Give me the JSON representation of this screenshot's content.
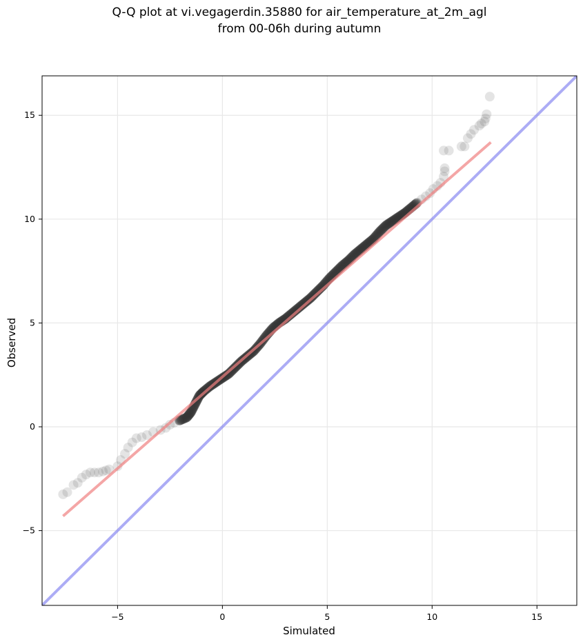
{
  "chart_data": {
    "type": "scatter",
    "title_line1": "Q-Q plot at vi.vegagerdin.35880 for air_temperature_at_2m_agl",
    "title_line2": "from 00-06h during autumn",
    "xlabel": "Simulated",
    "ylabel": "Observed",
    "xlim": [
      -8.6,
      16.9
    ],
    "ylim": [
      -8.6,
      16.9
    ],
    "xticks": [
      -5,
      0,
      5,
      10,
      15
    ],
    "yticks": [
      -5,
      0,
      5,
      10,
      15
    ],
    "xtick_labels": [
      "−5",
      "0",
      "5",
      "10",
      "15"
    ],
    "ytick_labels": [
      "−5",
      "0",
      "5",
      "10",
      "15"
    ],
    "grid": true,
    "colors": {
      "points": "#555555",
      "fit_line": "#f08080",
      "identity_line": "#8080f0",
      "grid": "#e8e8e8"
    },
    "identity_line": {
      "from": [
        -8.6,
        -8.6
      ],
      "to": [
        16.9,
        16.9
      ]
    },
    "fit_line": {
      "from": [
        -7.6,
        -4.3
      ],
      "to": [
        12.8,
        13.7
      ]
    },
    "tail_points": [
      [
        -7.6,
        -3.25
      ],
      [
        -7.4,
        -3.15
      ],
      [
        -7.1,
        -2.8
      ],
      [
        -6.9,
        -2.7
      ],
      [
        -6.7,
        -2.45
      ],
      [
        -6.5,
        -2.3
      ],
      [
        -6.3,
        -2.2
      ],
      [
        -6.1,
        -2.2
      ],
      [
        -5.9,
        -2.2
      ],
      [
        -5.7,
        -2.15
      ],
      [
        -5.55,
        -2.1
      ],
      [
        -5.4,
        -2.05
      ],
      [
        -5.0,
        -1.9
      ],
      [
        -4.85,
        -1.6
      ],
      [
        -4.65,
        -1.3
      ],
      [
        -4.5,
        -1.0
      ],
      [
        -4.3,
        -0.75
      ],
      [
        -4.1,
        -0.55
      ],
      [
        -3.85,
        -0.5
      ],
      [
        -3.6,
        -0.4
      ],
      [
        -3.3,
        -0.25
      ],
      [
        -2.95,
        -0.15
      ],
      [
        -2.7,
        -0.05
      ],
      [
        -2.5,
        0.1
      ],
      [
        -2.3,
        0.2
      ],
      [
        -2.05,
        0.3
      ],
      [
        9.3,
        10.8
      ],
      [
        9.5,
        10.95
      ],
      [
        9.7,
        11.1
      ],
      [
        9.9,
        11.25
      ],
      [
        10.05,
        11.45
      ],
      [
        10.25,
        11.6
      ],
      [
        10.4,
        11.75
      ],
      [
        10.55,
        12.05
      ],
      [
        10.6,
        12.3
      ],
      [
        10.6,
        12.45
      ],
      [
        10.55,
        13.3
      ],
      [
        10.8,
        13.3
      ],
      [
        11.4,
        13.5
      ],
      [
        11.55,
        13.5
      ],
      [
        11.7,
        13.9
      ],
      [
        11.85,
        14.1
      ],
      [
        12.0,
        14.3
      ],
      [
        12.25,
        14.5
      ],
      [
        12.35,
        14.6
      ],
      [
        12.5,
        14.7
      ],
      [
        12.55,
        14.85
      ],
      [
        12.6,
        15.05
      ],
      [
        12.75,
        15.9
      ]
    ],
    "dense_curve": [
      [
        -2.05,
        0.3
      ],
      [
        -1.7,
        0.45
      ],
      [
        -1.5,
        0.7
      ],
      [
        -1.3,
        1.1
      ],
      [
        -1.1,
        1.5
      ],
      [
        -0.9,
        1.7
      ],
      [
        -0.6,
        1.95
      ],
      [
        -0.3,
        2.15
      ],
      [
        0.0,
        2.35
      ],
      [
        0.3,
        2.55
      ],
      [
        0.6,
        2.85
      ],
      [
        0.9,
        3.15
      ],
      [
        1.2,
        3.4
      ],
      [
        1.5,
        3.65
      ],
      [
        1.8,
        4.0
      ],
      [
        2.1,
        4.4
      ],
      [
        2.4,
        4.75
      ],
      [
        2.7,
        5.0
      ],
      [
        3.0,
        5.2
      ],
      [
        3.3,
        5.45
      ],
      [
        3.6,
        5.7
      ],
      [
        3.9,
        5.95
      ],
      [
        4.2,
        6.2
      ],
      [
        4.5,
        6.5
      ],
      [
        4.8,
        6.8
      ],
      [
        5.1,
        7.15
      ],
      [
        5.4,
        7.45
      ],
      [
        5.7,
        7.75
      ],
      [
        6.0,
        8.0
      ],
      [
        6.3,
        8.3
      ],
      [
        6.6,
        8.55
      ],
      [
        6.9,
        8.8
      ],
      [
        7.2,
        9.05
      ],
      [
        7.5,
        9.4
      ],
      [
        7.8,
        9.7
      ],
      [
        8.1,
        9.9
      ],
      [
        8.4,
        10.1
      ],
      [
        8.7,
        10.3
      ],
      [
        9.0,
        10.55
      ],
      [
        9.3,
        10.8
      ]
    ]
  }
}
